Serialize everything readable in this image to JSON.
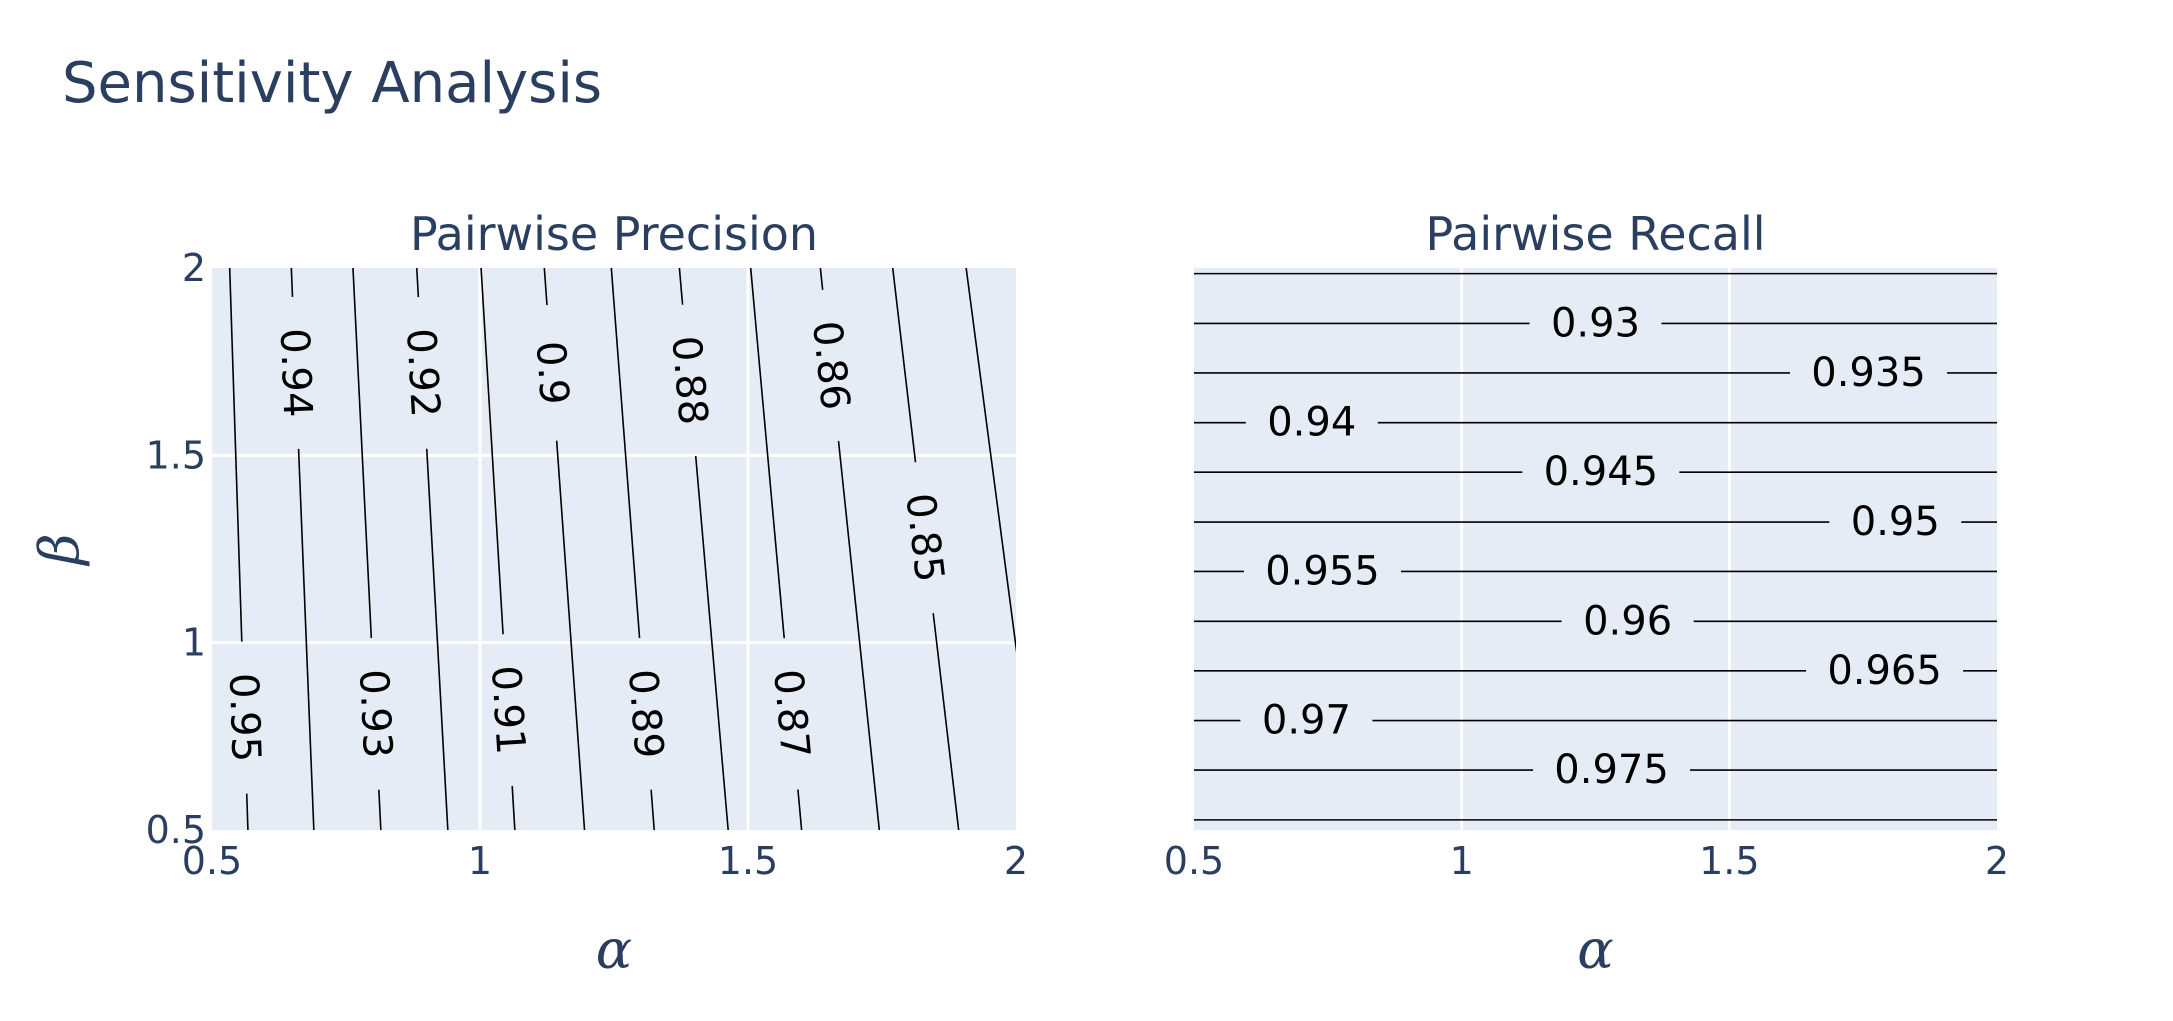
{
  "title": "Sensitivity Analysis",
  "colors": {
    "plot_bg": "#E5ECF6",
    "grid": "#FFFFFF",
    "text": "#2A3F5F",
    "contour": "#000000"
  },
  "chart_data": [
    {
      "type": "contour",
      "title": "Pairwise Precision",
      "xlabel": "α",
      "ylabel": "β",
      "xlim": [
        0.5,
        2
      ],
      "ylim": [
        0.5,
        2
      ],
      "x_ticks": [
        "0.5",
        "1",
        "1.5",
        "2"
      ],
      "y_ticks": [
        "0.5",
        "1",
        "1.5",
        "2"
      ],
      "grid": true,
      "levels": [
        {
          "value": "0.95",
          "x_at_bottom": 0.567,
          "x_at_top": 0.533,
          "label_y": 0.8
        },
        {
          "value": "0.94",
          "x_at_bottom": 0.69,
          "x_at_top": 0.648,
          "label_y": 1.72
        },
        {
          "value": "0.93",
          "x_at_bottom": 0.815,
          "x_at_top": 0.763,
          "label_y": 0.81
        },
        {
          "value": "0.92",
          "x_at_bottom": 0.94,
          "x_at_top": 0.882,
          "label_y": 1.72
        },
        {
          "value": "0.91",
          "x_at_bottom": 1.065,
          "x_at_top": 1.002,
          "label_y": 0.82
        },
        {
          "value": "0.9",
          "x_at_bottom": 1.195,
          "x_at_top": 1.12,
          "label_y": 1.72
        },
        {
          "value": "0.89",
          "x_at_bottom": 1.325,
          "x_at_top": 1.245,
          "label_y": 0.81
        },
        {
          "value": "0.88",
          "x_at_bottom": 1.463,
          "x_at_top": 1.372,
          "label_y": 1.7
        },
        {
          "value": "0.87",
          "x_at_bottom": 1.6,
          "x_at_top": 1.505,
          "label_y": 0.81
        },
        {
          "value": "0.86",
          "x_at_bottom": 1.745,
          "x_at_top": 1.635,
          "label_y": 1.74
        },
        {
          "value": "0.85",
          "x_at_bottom": 1.893,
          "x_at_top": 1.77,
          "label_y": 1.28
        },
        {
          "value": "",
          "x_at_bottom": 2.045,
          "x_at_top": 1.907,
          "label_y": null
        }
      ]
    },
    {
      "type": "contour",
      "title": "Pairwise Recall",
      "xlabel": "α",
      "ylabel": "",
      "xlim": [
        0.5,
        2
      ],
      "ylim": [
        0.5,
        2
      ],
      "x_ticks": [
        "0.5",
        "1",
        "1.5",
        "2"
      ],
      "grid": true,
      "levels": [
        {
          "value": "",
          "y": 1.985,
          "label_x": null
        },
        {
          "value": "0.93",
          "y": 1.852,
          "label_x": 1.25
        },
        {
          "value": "0.935",
          "y": 1.72,
          "label_x": 1.76
        },
        {
          "value": "0.94",
          "y": 1.587,
          "label_x": 0.72
        },
        {
          "value": "0.945",
          "y": 1.455,
          "label_x": 1.26
        },
        {
          "value": "0.95",
          "y": 1.322,
          "label_x": 1.81
        },
        {
          "value": "0.955",
          "y": 1.19,
          "label_x": 0.74
        },
        {
          "value": "0.96",
          "y": 1.057,
          "label_x": 1.31
        },
        {
          "value": "0.965",
          "y": 0.925,
          "label_x": 1.79
        },
        {
          "value": "0.97",
          "y": 0.792,
          "label_x": 0.71
        },
        {
          "value": "0.975",
          "y": 0.66,
          "label_x": 1.28
        },
        {
          "value": "",
          "y": 0.527,
          "label_x": null
        }
      ]
    }
  ]
}
